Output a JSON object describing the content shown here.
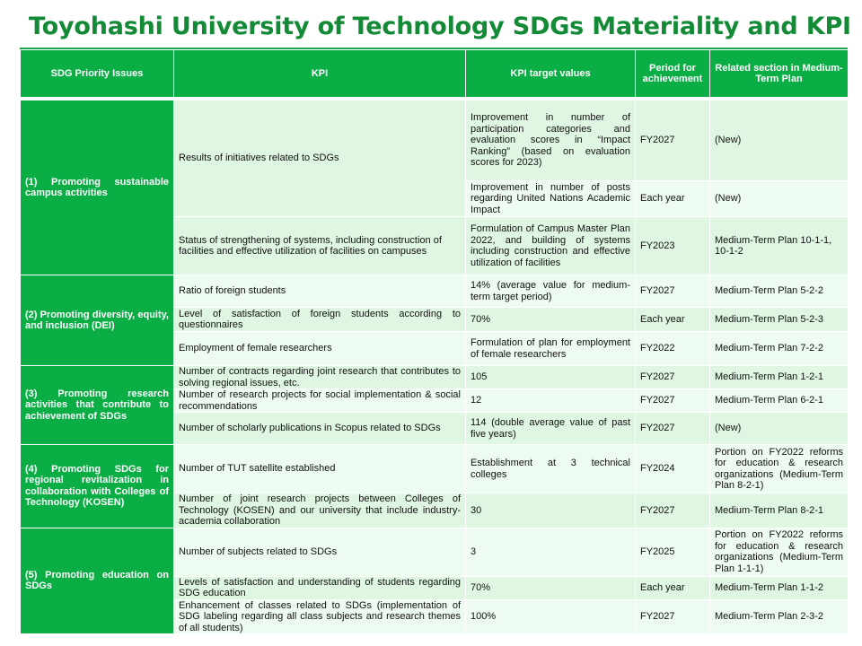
{
  "title": "Toyohashi University of Technology SDGs Materiality and KPI",
  "headers": {
    "issues": "SDG Priority Issues",
    "kpi": "KPI",
    "target": "KPI target values",
    "period": "Period for achievement",
    "section": "Related section in Medium-Term Plan"
  },
  "issues": [
    "(1) Promoting sustainable campus activities",
    "(2) Promoting diversity, equity, and inclusion (DEI)",
    "(3) Promoting research activities that contribute to achievement of SDGs",
    "(4) Promoting SDGs for regional revitalization in collaboration with Colleges of Technology (KOSEN)",
    "(5) Promoting education on SDGs"
  ],
  "rows": [
    {
      "kpi": "Results of initiatives related to SDGs",
      "target": "Improvement in number of participation categories and evaluation scores in “Impact Ranking” (based on evaluation scores for 2023)",
      "period": "FY2027",
      "section": "(New)"
    },
    {
      "kpi": "",
      "target": "Improvement in number of posts regarding United Nations Academic Impact",
      "period": "Each year",
      "section": "(New)"
    },
    {
      "kpi": "Status of strengthening of systems, including construction of facilities and effective utilization of facilities on campuses",
      "target": "Formulation of Campus Master Plan 2022, and building of systems including construction and effective utilization of facilities",
      "period": "FY2023",
      "section": "Medium-Term Plan 10-1-1, 10-1-2"
    },
    {
      "kpi": "Ratio of foreign students",
      "target": "14% (average value for medium-term target period)",
      "period": "FY2027",
      "section": "Medium-Term Plan 5-2-2"
    },
    {
      "kpi": "Level of satisfaction of foreign students according to questionnaires",
      "target": "70%",
      "period": "Each year",
      "section": "Medium-Term Plan 5-2-3"
    },
    {
      "kpi": "Employment of female researchers",
      "target": "Formulation of plan for employment of female researchers",
      "period": "FY2022",
      "section": "Medium-Term Plan 7-2-2"
    },
    {
      "kpi": "Number of contracts regarding joint research that contributes to solving regional issues, etc.",
      "target": "105",
      "period": "FY2027",
      "section": "Medium-Term Plan 1-2-1"
    },
    {
      "kpi": "Number of research projects for social implementation & social recommendations",
      "target": "12",
      "period": "FY2027",
      "section": "Medium-Term Plan 6-2-1"
    },
    {
      "kpi": "Number of scholarly publications in Scopus related to SDGs",
      "target": "114 (double average value of past five years)",
      "period": "FY2027",
      "section": "(New)"
    },
    {
      "kpi": "Number of TUT satellite established",
      "target": "Establishment at 3 technical colleges",
      "period": "FY2024",
      "section": "Portion on FY2022 reforms for education & research organizations (Medium-Term Plan 8-2-1)"
    },
    {
      "kpi": "Number of joint research projects between Colleges of Technology (KOSEN) and our university that include industry-academia collaboration",
      "target": "30",
      "period": "FY2027",
      "section": "Medium-Term Plan 8-2-1"
    },
    {
      "kpi": "Number of subjects related to SDGs",
      "target": "3",
      "period": "FY2025",
      "section": "Portion on FY2022 reforms for education & research organizations (Medium-Term Plan 1-1-1)"
    },
    {
      "kpi": "Levels of satisfaction and understanding of students regarding SDG education",
      "target": "70%",
      "period": "Each year",
      "section": "Medium-Term Plan 1-1-2"
    },
    {
      "kpi": "Enhancement of classes related to SDGs (implementation of SDG labeling regarding all class subjects and research themes of all students)",
      "target": "100%",
      "period": "FY2027",
      "section": "Medium-Term Plan 2-3-2"
    }
  ]
}
